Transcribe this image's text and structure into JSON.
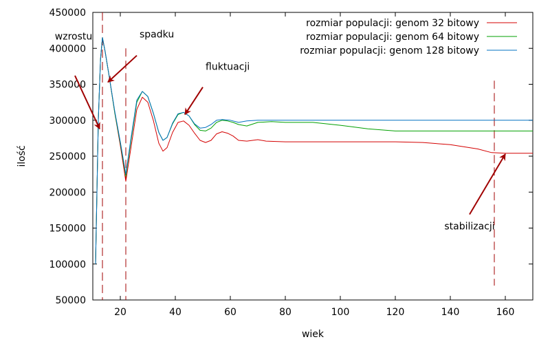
{
  "chart_data": {
    "type": "line",
    "xlabel": "wiek",
    "ylabel": "ilość",
    "xlim": [
      10,
      170
    ],
    "ylim": [
      50000,
      450000
    ],
    "x_ticks": [
      20,
      40,
      60,
      80,
      100,
      120,
      140,
      160
    ],
    "y_ticks": [
      50000,
      100000,
      150000,
      200000,
      250000,
      300000,
      350000,
      400000,
      450000
    ],
    "grid": false,
    "legend_position": "top-right",
    "series": [
      {
        "name": "rozmiar populacji: genom 32 bitowy",
        "color": "#d40000",
        "points": [
          [
            11,
            100000
          ],
          [
            12,
            300000
          ],
          [
            12.8,
            385000
          ],
          [
            13.5,
            415000
          ],
          [
            14.5,
            395000
          ],
          [
            16,
            360000
          ],
          [
            18,
            310000
          ],
          [
            20,
            265000
          ],
          [
            22,
            215000
          ],
          [
            24,
            265000
          ],
          [
            26,
            315000
          ],
          [
            28,
            332000
          ],
          [
            30,
            325000
          ],
          [
            32,
            300000
          ],
          [
            34,
            268000
          ],
          [
            35.5,
            257000
          ],
          [
            37,
            262000
          ],
          [
            39,
            283000
          ],
          [
            41,
            297000
          ],
          [
            43,
            299000
          ],
          [
            45,
            293000
          ],
          [
            47,
            282000
          ],
          [
            49,
            272000
          ],
          [
            51,
            269000
          ],
          [
            53,
            272000
          ],
          [
            55,
            281000
          ],
          [
            57,
            284000
          ],
          [
            59,
            282000
          ],
          [
            61,
            278000
          ],
          [
            63,
            272000
          ],
          [
            66,
            271000
          ],
          [
            70,
            273000
          ],
          [
            73,
            271000
          ],
          [
            80,
            270000
          ],
          [
            100,
            270000
          ],
          [
            120,
            270000
          ],
          [
            130,
            269000
          ],
          [
            140,
            266000
          ],
          [
            150,
            260000
          ],
          [
            155,
            255000
          ],
          [
            160,
            254000
          ],
          [
            170,
            254000
          ]
        ]
      },
      {
        "name": "rozmiar populacji: genom 64 bitowy",
        "color": "#00a000",
        "points": [
          [
            11,
            100000
          ],
          [
            12,
            300000
          ],
          [
            12.8,
            385000
          ],
          [
            13.5,
            415000
          ],
          [
            14.5,
            395000
          ],
          [
            16,
            360000
          ],
          [
            18,
            310000
          ],
          [
            20,
            268000
          ],
          [
            22,
            222000
          ],
          [
            24,
            275000
          ],
          [
            26,
            325000
          ],
          [
            28,
            340000
          ],
          [
            30,
            333000
          ],
          [
            32,
            310000
          ],
          [
            34,
            283000
          ],
          [
            35.5,
            272000
          ],
          [
            37,
            276000
          ],
          [
            39,
            295000
          ],
          [
            41,
            308000
          ],
          [
            43,
            311000
          ],
          [
            45,
            306000
          ],
          [
            47,
            294000
          ],
          [
            49,
            286000
          ],
          [
            51,
            285000
          ],
          [
            53,
            289000
          ],
          [
            55,
            297000
          ],
          [
            57,
            300000
          ],
          [
            59,
            299000
          ],
          [
            61,
            297000
          ],
          [
            63,
            294000
          ],
          [
            66,
            292000
          ],
          [
            70,
            297000
          ],
          [
            75,
            298000
          ],
          [
            80,
            297000
          ],
          [
            90,
            297000
          ],
          [
            100,
            293000
          ],
          [
            110,
            288000
          ],
          [
            120,
            285000
          ],
          [
            140,
            285000
          ],
          [
            170,
            285000
          ]
        ]
      },
      {
        "name": "rozmiar populacji: genom 128 bitowy",
        "color": "#0070c0",
        "points": [
          [
            11,
            100000
          ],
          [
            12,
            300000
          ],
          [
            12.8,
            385000
          ],
          [
            13.5,
            415000
          ],
          [
            14.5,
            395000
          ],
          [
            16,
            360000
          ],
          [
            18,
            312000
          ],
          [
            20,
            270000
          ],
          [
            22,
            225000
          ],
          [
            24,
            278000
          ],
          [
            26,
            328000
          ],
          [
            28,
            340000
          ],
          [
            30,
            333000
          ],
          [
            32,
            310000
          ],
          [
            34,
            283000
          ],
          [
            35.5,
            272000
          ],
          [
            37,
            276000
          ],
          [
            39,
            296000
          ],
          [
            41,
            309000
          ],
          [
            43,
            311000
          ],
          [
            45,
            306000
          ],
          [
            47,
            295000
          ],
          [
            49,
            289000
          ],
          [
            51,
            290000
          ],
          [
            53,
            294000
          ],
          [
            55,
            300000
          ],
          [
            57,
            301000
          ],
          [
            60,
            300000
          ],
          [
            63,
            297000
          ],
          [
            66,
            299000
          ],
          [
            70,
            300000
          ],
          [
            80,
            300000
          ],
          [
            100,
            300000
          ],
          [
            120,
            300000
          ],
          [
            140,
            300000
          ],
          [
            170,
            300000
          ]
        ]
      }
    ],
    "vertical_markers": [
      {
        "x": 13.5,
        "y_from": 50000,
        "y_to": 450000
      },
      {
        "x": 22,
        "y_from": 50000,
        "y_to": 400000
      },
      {
        "x": 156,
        "y_from": 70000,
        "y_to": 355000
      }
    ],
    "annotations": [
      {
        "text": "wzrostu",
        "text_pos": [
          3,
          412000
        ],
        "anchor": "middle",
        "arrow_from": [
          3.5,
          362000
        ],
        "arrow_to": [
          12.5,
          288000
        ]
      },
      {
        "text": "spadku",
        "text_pos": [
          27,
          415000
        ],
        "anchor": "start",
        "arrow_from": [
          26,
          390000
        ],
        "arrow_to": [
          15.5,
          353000
        ]
      },
      {
        "text": "fluktuacji",
        "text_pos": [
          51,
          370000
        ],
        "anchor": "start",
        "arrow_from": [
          50,
          346000
        ],
        "arrow_to": [
          43.5,
          308000
        ]
      },
      {
        "text": "stabilizacji",
        "text_pos": [
          147,
          148000
        ],
        "anchor": "middle",
        "arrow_from": [
          147,
          169000
        ],
        "arrow_to": [
          160,
          253000
        ]
      }
    ],
    "annotation_color": "#a00000",
    "marker_color": "#a00000"
  }
}
